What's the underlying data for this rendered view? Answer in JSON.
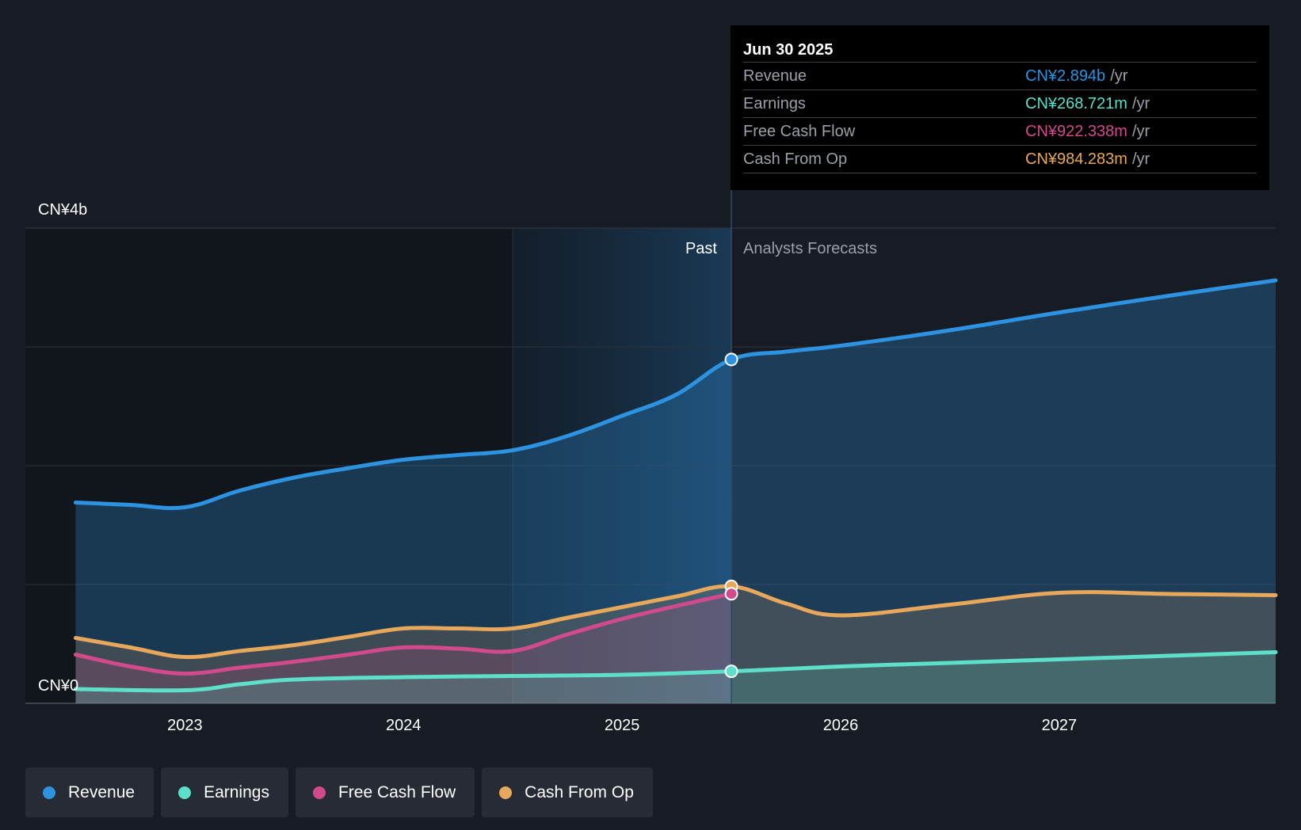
{
  "chart_data": {
    "type": "area",
    "title": "",
    "y_unit_labels": [
      "CN¥4b",
      "CN¥0"
    ],
    "ylim": [
      0,
      4.0
    ],
    "xlim": [
      2022.27,
      2027.99
    ],
    "x_ticks": [
      {
        "value": 2023.0,
        "label": "2023"
      },
      {
        "value": 2024.0,
        "label": "2024"
      },
      {
        "value": 2025.0,
        "label": "2025"
      },
      {
        "value": 2026.0,
        "label": "2026"
      },
      {
        "value": 2027.0,
        "label": "2027"
      }
    ],
    "gridlines": [
      0,
      1,
      2,
      3,
      4
    ],
    "divider_x": 2025.5,
    "shade_start_x": 2024.5,
    "regions": {
      "past": "Past",
      "forecast": "Analysts Forecasts"
    },
    "series": [
      {
        "name": "Revenue",
        "color": "#2d93e0",
        "x": [
          2022.5,
          2022.75,
          2023.0,
          2023.25,
          2023.5,
          2023.75,
          2024.0,
          2024.25,
          2024.5,
          2024.75,
          2025.0,
          2025.25,
          2025.5,
          2025.75,
          2026.0,
          2026.5,
          2027.0,
          2027.5,
          2027.99
        ],
        "y": [
          1.69,
          1.67,
          1.65,
          1.79,
          1.9,
          1.98,
          2.05,
          2.09,
          2.13,
          2.25,
          2.42,
          2.6,
          2.894,
          2.96,
          3.01,
          3.14,
          3.29,
          3.43,
          3.56
        ]
      },
      {
        "name": "Earnings",
        "color": "#5ddfc9",
        "x": [
          2022.5,
          2023.0,
          2023.25,
          2023.5,
          2024.0,
          2024.5,
          2025.0,
          2025.5,
          2026.0,
          2026.5,
          2027.0,
          2027.5,
          2027.99
        ],
        "y": [
          0.12,
          0.11,
          0.16,
          0.2,
          0.22,
          0.23,
          0.24,
          0.269,
          0.31,
          0.34,
          0.37,
          0.4,
          0.43
        ]
      },
      {
        "name": "Free Cash Flow",
        "color": "#d14b8c",
        "x": [
          2022.5,
          2022.75,
          2023.0,
          2023.25,
          2023.5,
          2023.75,
          2024.0,
          2024.25,
          2024.5,
          2024.75,
          2025.0,
          2025.25,
          2025.5
        ],
        "y": [
          0.41,
          0.31,
          0.25,
          0.3,
          0.35,
          0.41,
          0.47,
          0.46,
          0.44,
          0.58,
          0.71,
          0.82,
          0.922
        ]
      },
      {
        "name": "Cash From Op",
        "color": "#e8a85c",
        "x": [
          2022.5,
          2022.75,
          2023.0,
          2023.25,
          2023.5,
          2023.75,
          2024.0,
          2024.25,
          2024.5,
          2024.75,
          2025.0,
          2025.25,
          2025.5,
          2025.75,
          2026.0,
          2026.5,
          2027.0,
          2027.5,
          2027.99
        ],
        "y": [
          0.55,
          0.47,
          0.39,
          0.44,
          0.49,
          0.56,
          0.63,
          0.63,
          0.63,
          0.72,
          0.81,
          0.9,
          0.984,
          0.84,
          0.74,
          0.83,
          0.93,
          0.92,
          0.91
        ]
      }
    ],
    "highlight": {
      "date": "Jun 30 2025",
      "x": 2025.5,
      "rows": [
        {
          "name": "Revenue",
          "value": "CN¥2.894b",
          "unit": "/yr",
          "color": "#2d93e0"
        },
        {
          "name": "Earnings",
          "value": "CN¥268.721m",
          "unit": "/yr",
          "color": "#5ddfc9"
        },
        {
          "name": "Free Cash Flow",
          "value": "CN¥922.338m",
          "unit": "/yr",
          "color": "#d14b8c"
        },
        {
          "name": "Cash From Op",
          "value": "CN¥984.283m",
          "unit": "/yr",
          "color": "#e8a85c"
        }
      ]
    }
  },
  "legend": [
    {
      "label": "Revenue",
      "color": "#2d93e0"
    },
    {
      "label": "Earnings",
      "color": "#5ddfc9"
    },
    {
      "label": "Free Cash Flow",
      "color": "#d14b8c"
    },
    {
      "label": "Cash From Op",
      "color": "#e8a85c"
    }
  ]
}
